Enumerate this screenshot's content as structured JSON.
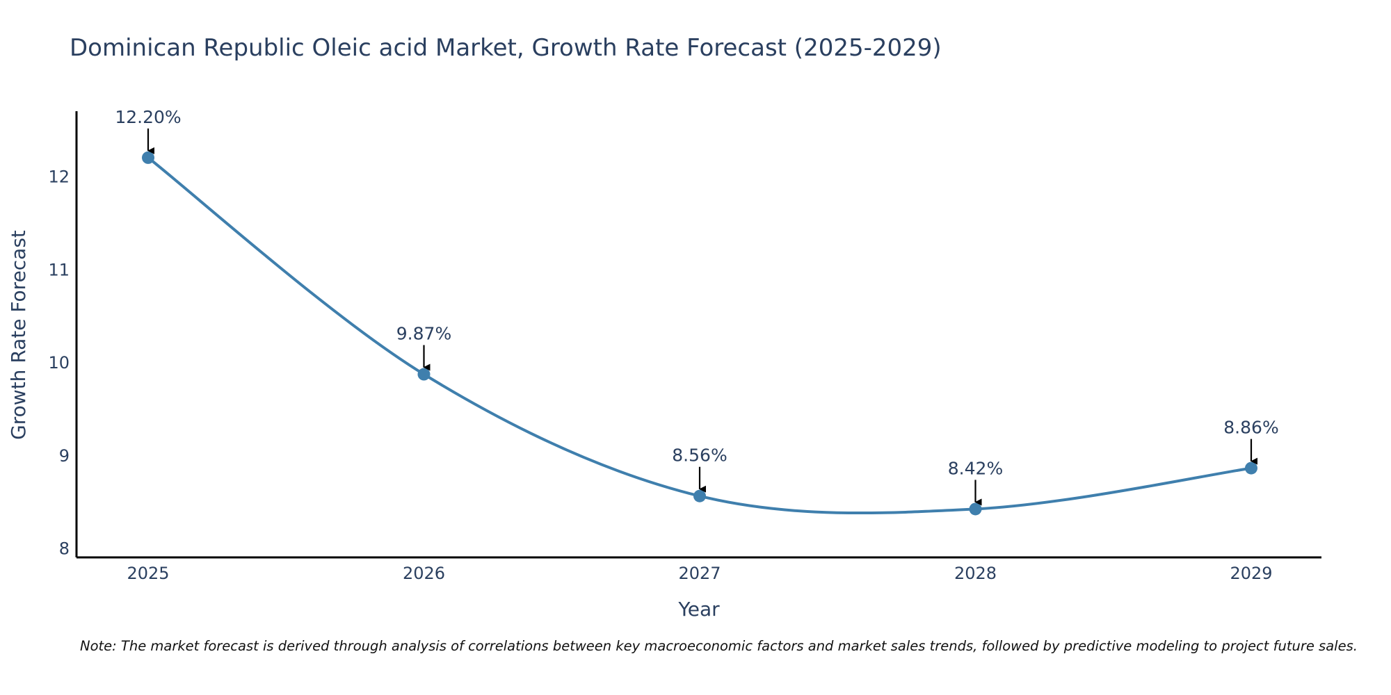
{
  "chart_data": {
    "type": "line",
    "title": "Dominican Republic Oleic acid Market, Growth Rate Forecast (2025-2029)",
    "xlabel": "Year",
    "ylabel": "Growth Rate Forecast",
    "categories": [
      "2025",
      "2026",
      "2027",
      "2028",
      "2029"
    ],
    "values": [
      12.2,
      9.87,
      8.56,
      8.42,
      8.86
    ],
    "data_labels": [
      "12.20%",
      "9.87%",
      "8.56%",
      "8.42%",
      "8.86%"
    ],
    "ylim": [
      7.9,
      12.7
    ],
    "yticks": [
      8,
      9,
      10,
      11,
      12
    ],
    "grid": false,
    "line_color": "#3f7fad",
    "marker_color": "#3f7fad",
    "arrow_color": "#000000"
  },
  "note": "Note: The market forecast is derived through analysis of correlations between key macroeconomic factors and market sales trends, followed by predictive modeling to project future sales."
}
